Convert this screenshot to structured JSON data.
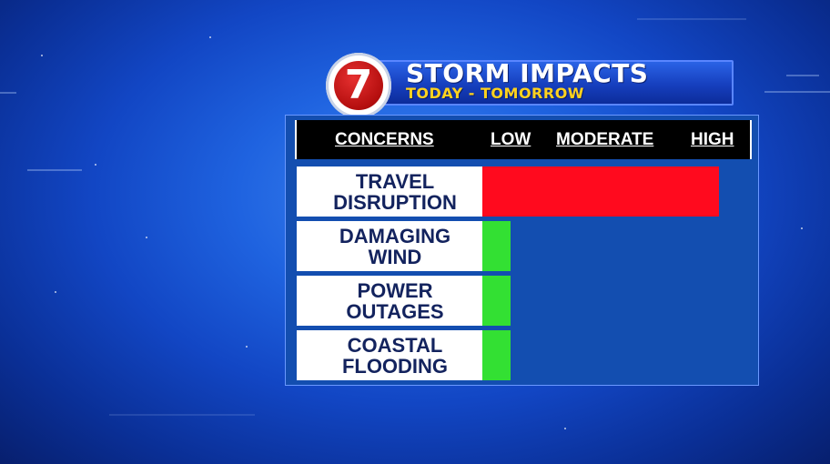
{
  "header": {
    "logo_text": "7",
    "title": "STORM IMPACTS",
    "subtitle": "TODAY - TOMORROW"
  },
  "colors": {
    "high": "#ff0a1e",
    "low": "#33e033",
    "panel": "#134eb0",
    "label_text": "#13235e",
    "subtitle": "#ffd21e"
  },
  "chart_data": {
    "type": "bar",
    "orientation": "horizontal",
    "column_headers": [
      "CONCERNS",
      "LOW",
      "MODERATE",
      "HIGH"
    ],
    "scale_levels": [
      "LOW",
      "MODERATE",
      "HIGH"
    ],
    "categories": [
      "TRAVEL\nDISRUPTION",
      "DAMAGING\nWIND",
      "POWER\nOUTAGES",
      "COASTAL\nFLOODING"
    ],
    "values": [
      1.0,
      0.12,
      0.12,
      0.12
    ],
    "levels": [
      "HIGH",
      "LOW",
      "LOW",
      "LOW"
    ],
    "xlim": [
      0,
      1
    ],
    "legend": false,
    "grid": false
  }
}
